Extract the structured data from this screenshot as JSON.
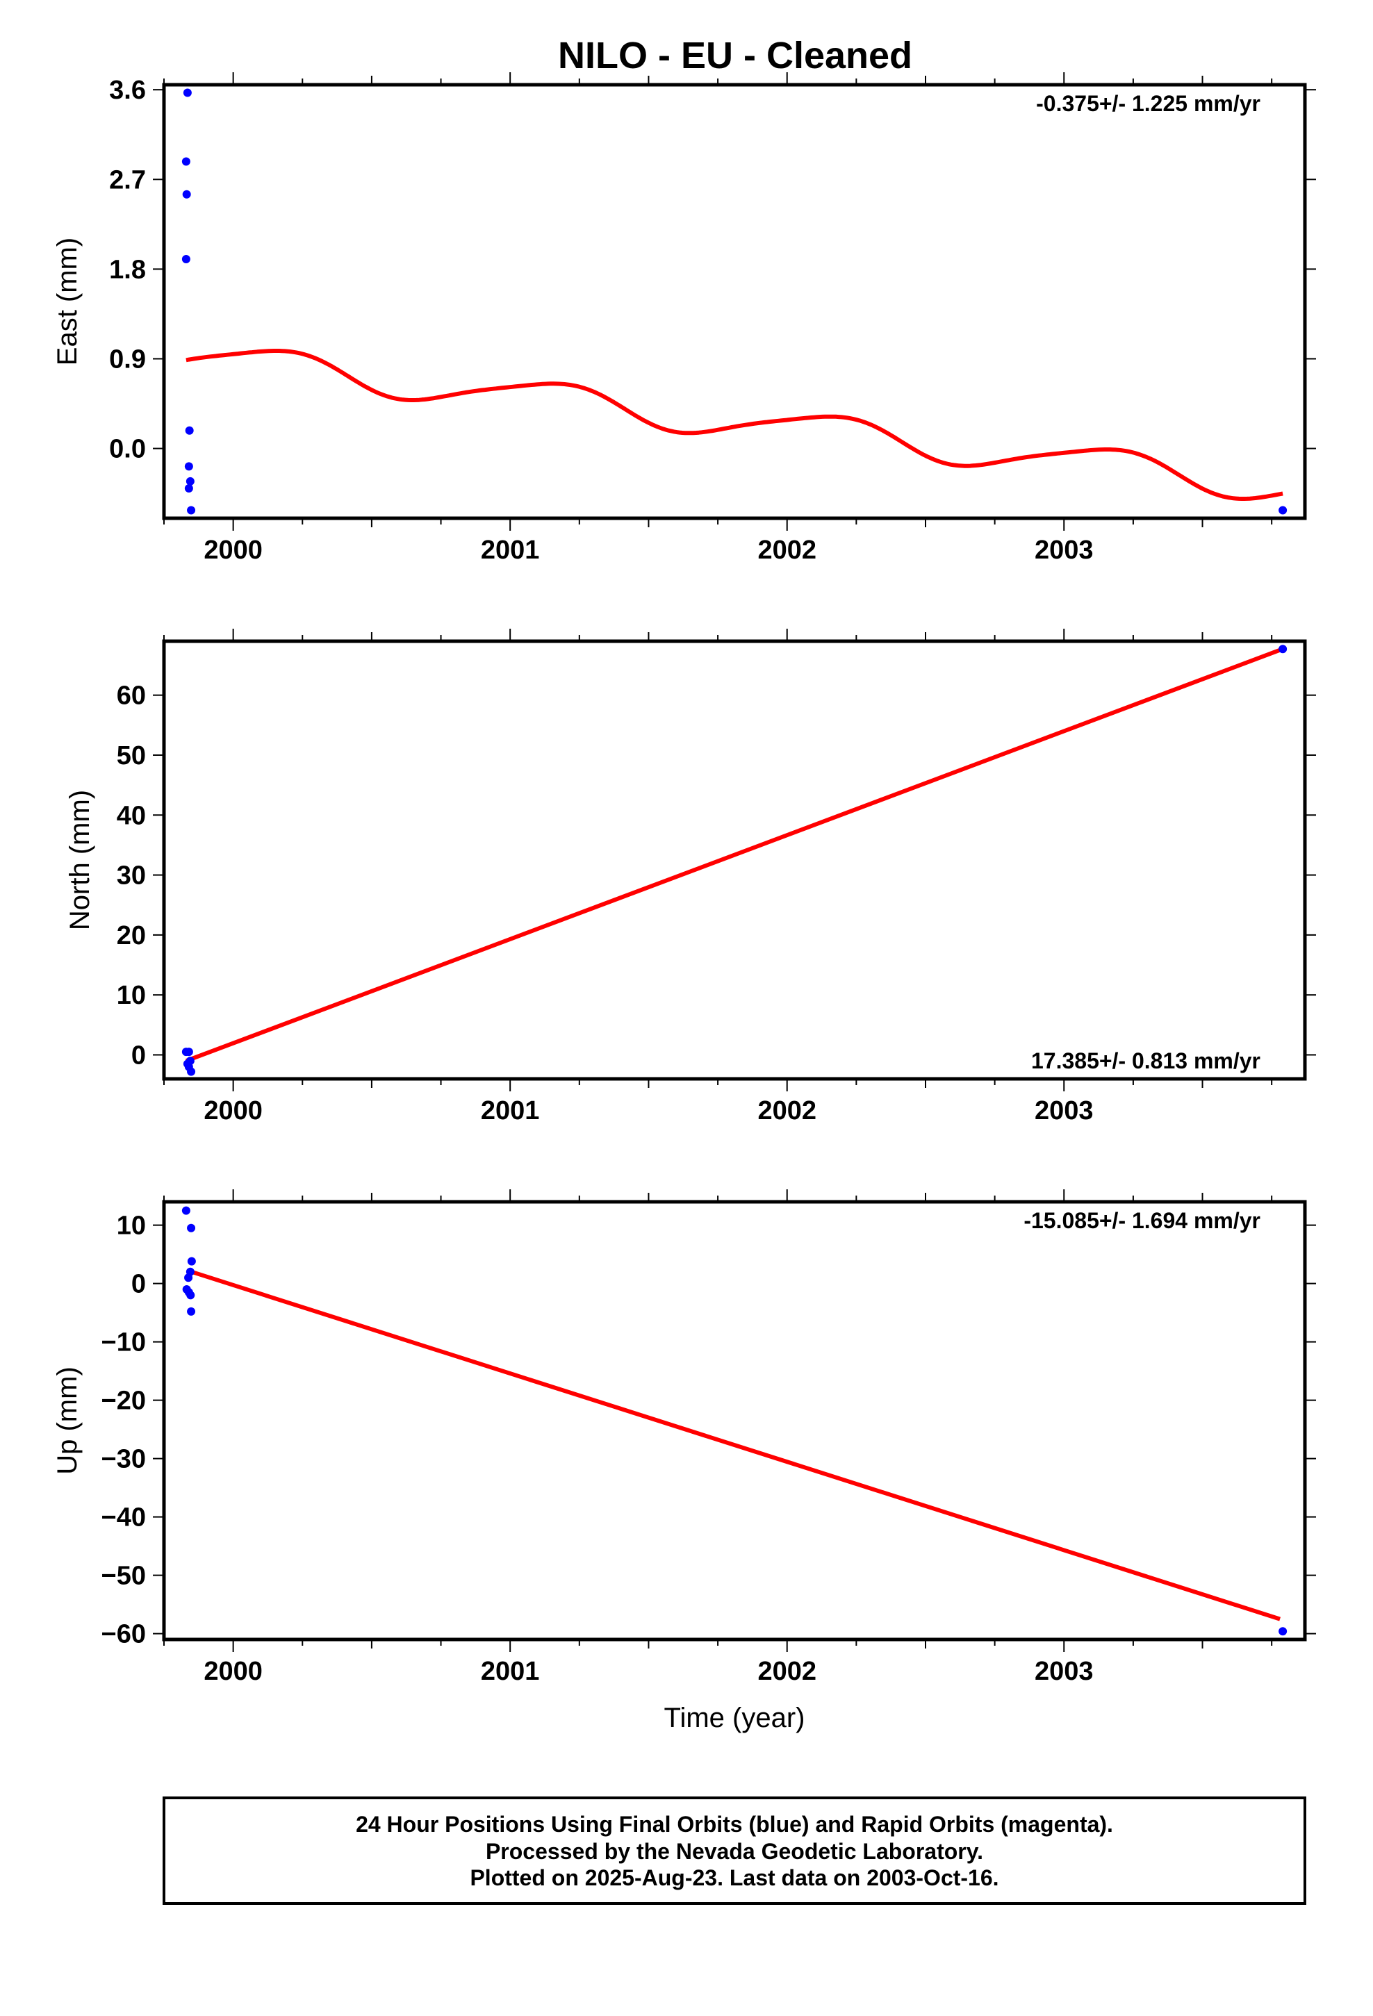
{
  "title": "NILO  - EU - Cleaned",
  "footer": {
    "line1": "24 Hour Positions Using Final Orbits (blue) and Rapid Orbits (magenta).",
    "line2": "Processed by the Nevada Geodetic Laboratory.",
    "line3": "Plotted on 2025-Aug-23. Last data on 2003-Oct-16."
  },
  "colors": {
    "points": "#0000ff",
    "fit": "#ff0000",
    "frame": "#000000"
  },
  "chart_data": [
    {
      "type": "scatter",
      "name": "east",
      "ylabel": "East (mm)",
      "xlabel": "",
      "rate_label": "-0.375+/- 1.225 mm/yr",
      "rate_position": "top-right",
      "xlim": [
        1999.75,
        2003.87
      ],
      "ylim": [
        -0.7,
        3.65
      ],
      "xticks": [
        2000,
        2001,
        2002,
        2003
      ],
      "xtick_labels": [
        "2000",
        "2001",
        "2002",
        "2003"
      ],
      "yticks": [
        0.0,
        0.9,
        1.8,
        2.7,
        3.6
      ],
      "ytick_labels": [
        "0.0",
        "0.9",
        "1.8",
        "2.7",
        "3.6"
      ],
      "points": [
        {
          "x": 1999.835,
          "y": 3.57
        },
        {
          "x": 1999.83,
          "y": 2.88
        },
        {
          "x": 1999.832,
          "y": 2.55
        },
        {
          "x": 1999.83,
          "y": 1.9
        },
        {
          "x": 1999.842,
          "y": 0.18
        },
        {
          "x": 1999.84,
          "y": -0.18
        },
        {
          "x": 1999.845,
          "y": -0.33
        },
        {
          "x": 1999.84,
          "y": -0.4
        },
        {
          "x": 1999.848,
          "y": -0.62
        },
        {
          "x": 2003.79,
          "y": -0.62
        }
      ],
      "fit": {
        "kind": "seasonal",
        "x_start": 1999.83,
        "x_end": 2003.79,
        "intercept_at_start": 0.93,
        "rate_mm_per_yr": -0.33,
        "annual_amplitude": 0.165,
        "annual_phase": 0.15,
        "semiannual_amplitude": 0.03,
        "semiannual_phase": 0.3
      }
    },
    {
      "type": "scatter",
      "name": "north",
      "ylabel": "North (mm)",
      "xlabel": "",
      "rate_label": "17.385+/- 0.813 mm/yr",
      "rate_position": "bottom-right",
      "xlim": [
        1999.75,
        2003.87
      ],
      "ylim": [
        -4,
        69
      ],
      "xticks": [
        2000,
        2001,
        2002,
        2003
      ],
      "xtick_labels": [
        "2000",
        "2001",
        "2002",
        "2003"
      ],
      "yticks": [
        0,
        10,
        20,
        30,
        40,
        50,
        60
      ],
      "ytick_labels": [
        "0",
        "10",
        "20",
        "30",
        "40",
        "50",
        "60"
      ],
      "points": [
        {
          "x": 1999.83,
          "y": 0.5
        },
        {
          "x": 1999.84,
          "y": 0.5
        },
        {
          "x": 1999.835,
          "y": -1.5
        },
        {
          "x": 1999.845,
          "y": -1.0
        },
        {
          "x": 1999.84,
          "y": -2.0
        },
        {
          "x": 1999.848,
          "y": -2.8
        },
        {
          "x": 2003.79,
          "y": 67.7
        }
      ],
      "fit": {
        "kind": "linear",
        "x": [
          1999.83,
          2003.79
        ],
        "y": [
          -1.0,
          67.7
        ]
      }
    },
    {
      "type": "scatter",
      "name": "up",
      "ylabel": "Up (mm)",
      "xlabel": "Time (year)",
      "rate_label": "-15.085+/- 1.694 mm/yr",
      "rate_position": "top-right",
      "xlim": [
        1999.75,
        2003.87
      ],
      "ylim": [
        -61,
        14
      ],
      "xticks": [
        2000,
        2001,
        2002,
        2003
      ],
      "xtick_labels": [
        "2000",
        "2001",
        "2002",
        "2003"
      ],
      "yticks": [
        -60,
        -50,
        -40,
        -30,
        -20,
        -10,
        0,
        10
      ],
      "ytick_labels": [
        "−60",
        "−50",
        "−40",
        "−30",
        "−20",
        "−10",
        "0",
        "10"
      ],
      "points": [
        {
          "x": 1999.83,
          "y": 12.5
        },
        {
          "x": 1999.848,
          "y": 9.5
        },
        {
          "x": 1999.85,
          "y": 3.8
        },
        {
          "x": 1999.845,
          "y": 2.0
        },
        {
          "x": 1999.838,
          "y": 1.0
        },
        {
          "x": 1999.832,
          "y": -1.0
        },
        {
          "x": 1999.84,
          "y": -1.5
        },
        {
          "x": 1999.846,
          "y": -2.0
        },
        {
          "x": 1999.848,
          "y": -4.8
        },
        {
          "x": 2003.79,
          "y": -59.6
        }
      ],
      "fit": {
        "kind": "linear",
        "x": [
          1999.85,
          2003.78
        ],
        "y": [
          2.0,
          -57.5
        ]
      }
    }
  ]
}
